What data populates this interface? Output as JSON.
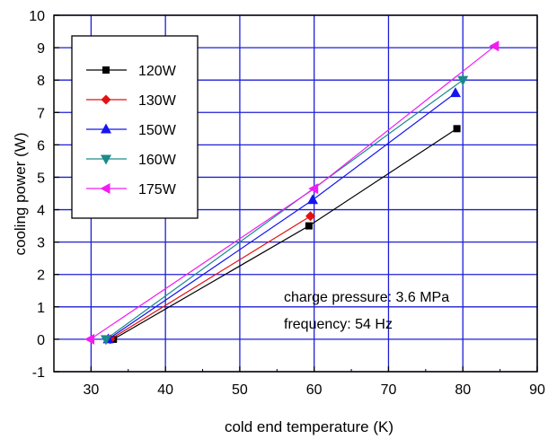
{
  "chart_data": {
    "type": "line",
    "xlabel": "cold end temperature (K)",
    "ylabel": "cooling power (W)",
    "xlim": [
      25,
      90
    ],
    "ylim": [
      -1,
      10
    ],
    "xticks": [
      30,
      40,
      50,
      60,
      70,
      80,
      90
    ],
    "yticks": [
      -1,
      0,
      1,
      2,
      3,
      4,
      5,
      6,
      7,
      8,
      9,
      10
    ],
    "grid": true,
    "grid_color": "#1f1fd6",
    "legend_position": "top-left",
    "series": [
      {
        "name": "120W",
        "color": "#000000",
        "marker": "square",
        "points": [
          [
            33.0,
            0.0
          ],
          [
            59.3,
            3.5
          ],
          [
            79.2,
            6.5
          ]
        ]
      },
      {
        "name": "130W",
        "color": "#e21212",
        "marker": "diamond",
        "points": [
          [
            32.6,
            0.0
          ],
          [
            59.5,
            3.8
          ]
        ]
      },
      {
        "name": "150W",
        "color": "#1515f0",
        "marker": "triangle-up",
        "points": [
          [
            32.3,
            0.0
          ],
          [
            59.8,
            4.3
          ],
          [
            79.0,
            7.6
          ]
        ]
      },
      {
        "name": "160W",
        "color": "#1a8a8a",
        "marker": "triangle-down",
        "points": [
          [
            32.0,
            0.0
          ],
          [
            80.0,
            8.0
          ]
        ]
      },
      {
        "name": "175W",
        "color": "#f21cf2",
        "marker": "triangle-left",
        "points": [
          [
            29.9,
            0.0
          ],
          [
            60.0,
            4.65
          ],
          [
            84.3,
            9.05
          ]
        ]
      }
    ],
    "annotations": [
      "charge pressure:  3.6 MPa",
      "frequency:  54 Hz"
    ]
  }
}
